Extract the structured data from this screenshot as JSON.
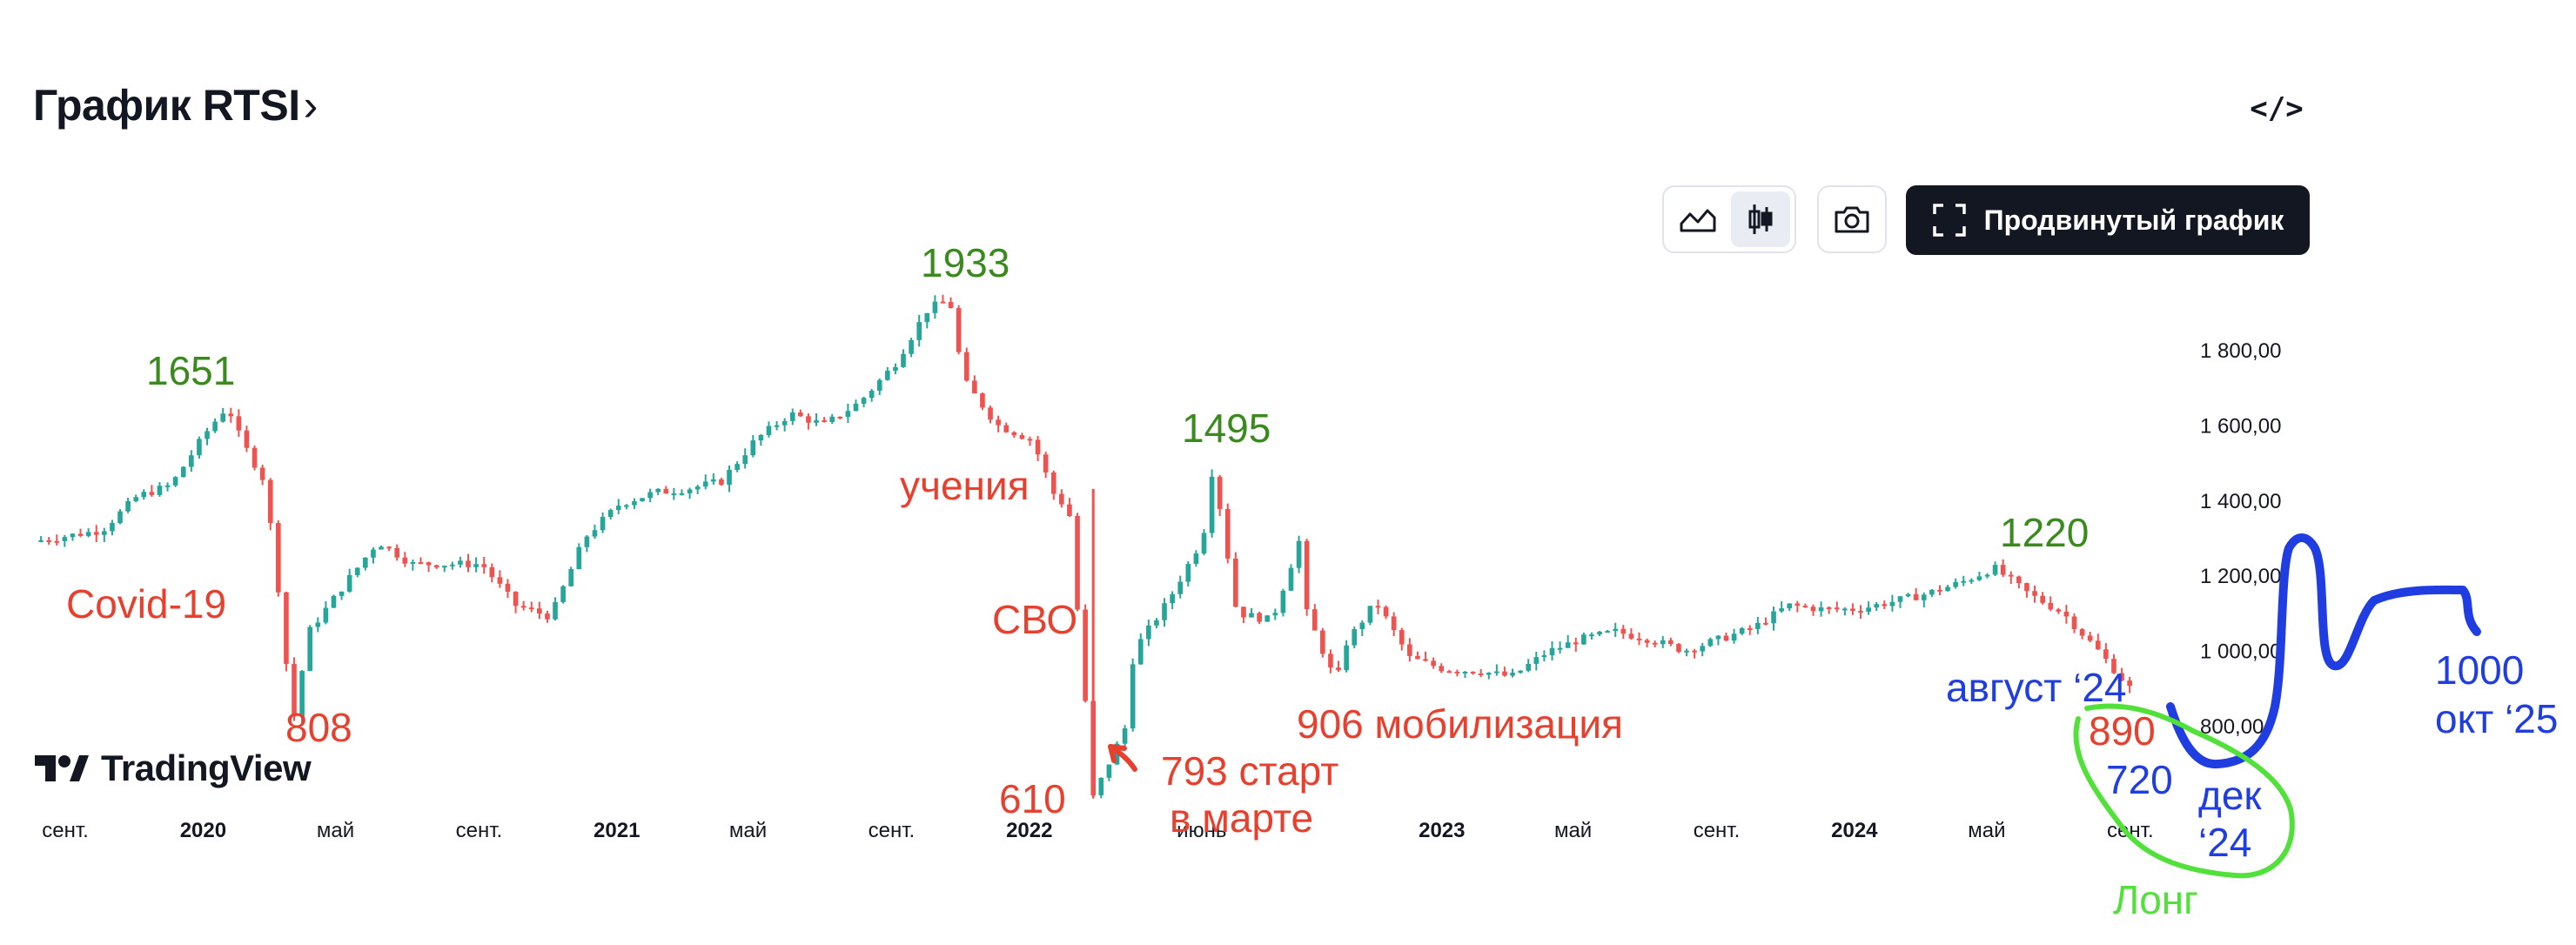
{
  "header": {
    "title": "График RTSI",
    "title_chevron": "›",
    "embed_icon_label": "</>"
  },
  "toolbar": {
    "area_chart_icon": "area-chart-icon",
    "candles_icon": "candlestick-icon",
    "camera_icon": "camera-icon",
    "advanced_chart_label": "Продвинутый график",
    "advanced_chart_icon": "fullscreen-icon"
  },
  "logo": {
    "mark": "17",
    "text": "TradingView"
  },
  "colors": {
    "up": "#26a69a",
    "down": "#ef5350",
    "green_annotation": "#3a8a1e",
    "red_annotation": "#e8402f",
    "blue_annotation": "#1f3de0",
    "lime_annotation": "#52e03a",
    "text_dark": "#131722",
    "axis_text": "#131722"
  },
  "chart_data": {
    "type": "candlestick",
    "title": "График RTSI",
    "x_range": [
      "2019-08",
      "2024-10"
    ],
    "ylim": [
      800,
      1800
    ],
    "y_ticks": [
      "1 800,00",
      "1 600,00",
      "1 400,00",
      "1 200,00",
      "1 000,00",
      "800,00"
    ],
    "y_tick_values": [
      1800,
      1600,
      1400,
      1200,
      1000,
      800
    ],
    "x_ticks": [
      {
        "label": "сент.",
        "date": "2019-09",
        "bold": false
      },
      {
        "label": "2020",
        "date": "2020-01",
        "bold": true
      },
      {
        "label": "май",
        "date": "2020-05",
        "bold": false
      },
      {
        "label": "сент.",
        "date": "2020-09",
        "bold": false
      },
      {
        "label": "2021",
        "date": "2021-01",
        "bold": true
      },
      {
        "label": "май",
        "date": "2021-05",
        "bold": false
      },
      {
        "label": "сент.",
        "date": "2021-09",
        "bold": false
      },
      {
        "label": "2022",
        "date": "2022-01",
        "bold": true
      },
      {
        "label": "июнь",
        "date": "2022-06",
        "bold": false
      },
      {
        "label": "2023",
        "date": "2023-01",
        "bold": true
      },
      {
        "label": "май",
        "date": "2023-05",
        "bold": false
      },
      {
        "label": "сент.",
        "date": "2023-09",
        "bold": false
      },
      {
        "label": "2024",
        "date": "2024-01",
        "bold": true
      },
      {
        "label": "май",
        "date": "2024-05",
        "bold": false
      },
      {
        "label": "сент.",
        "date": "2024-09",
        "bold": false
      }
    ],
    "close_path": [
      [
        "2019-08",
        1290
      ],
      [
        "2019-10",
        1320
      ],
      [
        "2019-11",
        1410
      ],
      [
        "2019-12",
        1440
      ],
      [
        "2020-01",
        1580
      ],
      [
        "2020-01-20",
        1651
      ],
      [
        "2020-02",
        1560
      ],
      [
        "2020-02-20",
        1460
      ],
      [
        "2020-03",
        1280
      ],
      [
        "2020-03-15",
        880
      ],
      [
        "2020-03-18",
        808
      ],
      [
        "2020-04",
        1050
      ],
      [
        "2020-05",
        1170
      ],
      [
        "2020-06",
        1290
      ],
      [
        "2020-07",
        1230
      ],
      [
        "2020-08",
        1230
      ],
      [
        "2020-09",
        1230
      ],
      [
        "2020-10",
        1120
      ],
      [
        "2020-11",
        1090
      ],
      [
        "2020-12",
        1300
      ],
      [
        "2021-01",
        1390
      ],
      [
        "2021-02",
        1420
      ],
      [
        "2021-03",
        1430
      ],
      [
        "2021-04",
        1450
      ],
      [
        "2021-05",
        1560
      ],
      [
        "2021-06",
        1630
      ],
      [
        "2021-07",
        1600
      ],
      [
        "2021-08",
        1660
      ],
      [
        "2021-09",
        1760
      ],
      [
        "2021-10",
        1910
      ],
      [
        "2021-10-20",
        1933
      ],
      [
        "2021-11",
        1720
      ],
      [
        "2021-12",
        1600
      ],
      [
        "2022-01",
        1560
      ],
      [
        "2022-01-25",
        1380
      ],
      [
        "2022-02",
        1430
      ],
      [
        "2022-02-24",
        610
      ],
      [
        "2022-03-24",
        793
      ],
      [
        "2022-04",
        1000
      ],
      [
        "2022-05",
        1130
      ],
      [
        "2022-06",
        1300
      ],
      [
        "2022-06-10",
        1495
      ],
      [
        "2022-07",
        1100
      ],
      [
        "2022-08",
        1080
      ],
      [
        "2022-08-25",
        1290
      ],
      [
        "2022-09",
        1100
      ],
      [
        "2022-09-28",
        906
      ],
      [
        "2022-10",
        1000
      ],
      [
        "2022-11",
        1130
      ],
      [
        "2022-12",
        980
      ],
      [
        "2023-01",
        950
      ],
      [
        "2023-02",
        945
      ],
      [
        "2023-03",
        930
      ],
      [
        "2023-04",
        995
      ],
      [
        "2023-05",
        1030
      ],
      [
        "2023-06",
        1050
      ],
      [
        "2023-07",
        1030
      ],
      [
        "2023-08",
        1000
      ],
      [
        "2023-09",
        1030
      ],
      [
        "2023-10",
        1060
      ],
      [
        "2023-11",
        1120
      ],
      [
        "2023-12",
        1110
      ],
      [
        "2024-01",
        1110
      ],
      [
        "2024-02",
        1130
      ],
      [
        "2024-03",
        1150
      ],
      [
        "2024-04",
        1180
      ],
      [
        "2024-05",
        1220
      ],
      [
        "2024-06",
        1150
      ],
      [
        "2024-07",
        1100
      ],
      [
        "2024-08",
        1000
      ],
      [
        "2024-09",
        890
      ]
    ],
    "annotations": {
      "green": [
        "1651",
        "1933",
        "1495",
        "1220"
      ],
      "red": [
        "Covid-19",
        "808",
        "учения",
        "СВО",
        "610",
        "793 старт",
        "в марте",
        "906 мобилизация",
        "890"
      ],
      "blue": [
        "август ‘24",
        "720",
        "дек",
        "‘24",
        "1000",
        "окт ‘25"
      ],
      "lime": [
        "Лонг"
      ]
    }
  }
}
